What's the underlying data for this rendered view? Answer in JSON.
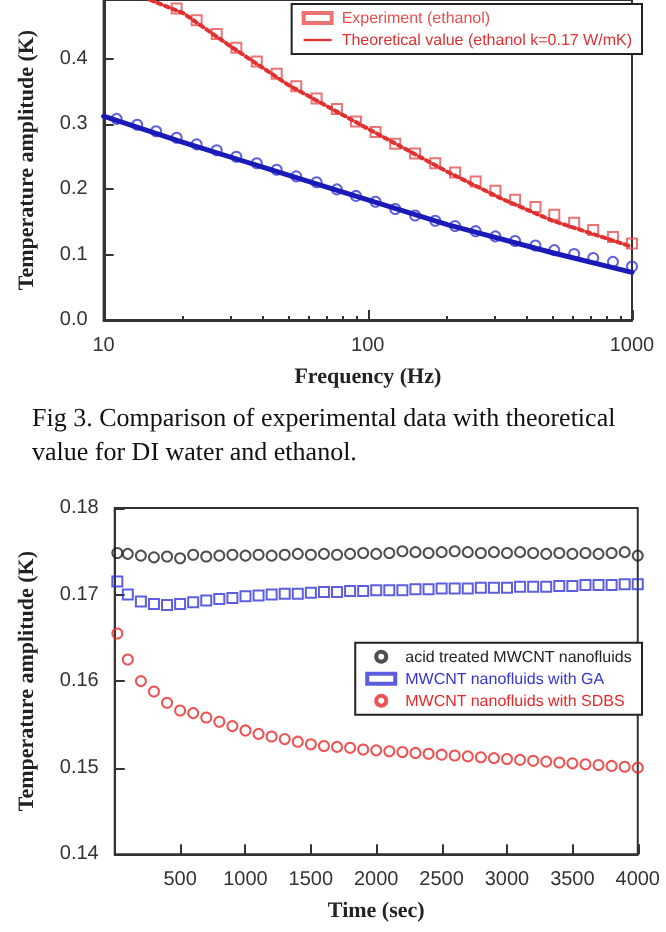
{
  "chart_data": [
    {
      "type": "line",
      "xlabel": "Frequency (Hz)",
      "ylabel": "Temperature amplitude (K)",
      "log": "x",
      "xlim": [
        10,
        1000
      ],
      "xticks": [
        10,
        100,
        1000
      ],
      "ylim": [
        0,
        0.49
      ],
      "yticks": [
        {
          "value": 0,
          "label": "0.0"
        },
        0.1,
        0.2,
        0.3,
        0.4
      ],
      "grid": false,
      "legend": "top right",
      "annotations": [
        "Fig 3. Comparison of experimental data with theoretical value for DI water and ethanol."
      ],
      "series": [
        {
          "type": "scatter",
          "marker": "circle",
          "color": "#3a3ad8",
          "x": [
            11.2,
            13.4,
            15.8,
            18.9,
            22.5,
            26.8,
            31.8,
            38,
            45.2,
            53.6,
            64,
            76.4,
            90.2,
            107,
            127,
            151,
            180,
            214,
            256,
            304,
            361,
            431,
            508,
            604,
            713,
            847,
            1000
          ],
          "values": [
            0.308,
            0.299,
            0.289,
            0.279,
            0.269,
            0.26,
            0.25,
            0.24,
            0.23,
            0.22,
            0.211,
            0.2,
            0.19,
            0.181,
            0.17,
            0.16,
            0.152,
            0.144,
            0.136,
            0.128,
            0.121,
            0.114,
            0.107,
            0.101,
            0.095,
            0.089,
            0.082
          ]
        },
        {
          "marker": "none",
          "line_style": "solid",
          "color": "#1a1ab8",
          "x": [
            10,
            20,
            50,
            100,
            200,
            500,
            1000
          ],
          "values": [
            0.312,
            0.272,
            0.222,
            0.184,
            0.146,
            0.103,
            0.073
          ]
        },
        {
          "name": "Experiment (ethanol)",
          "type": "scatter",
          "marker": "square",
          "color": "#e85050",
          "x": [
            18.9,
            22.5,
            26.8,
            31.8,
            38,
            45.2,
            53.6,
            64,
            76.4,
            90.2,
            107,
            127,
            151,
            180,
            214,
            256,
            304,
            361,
            431,
            508,
            604,
            713,
            847,
            1000
          ],
          "values": [
            0.477,
            0.459,
            0.438,
            0.417,
            0.396,
            0.377,
            0.358,
            0.339,
            0.323,
            0.304,
            0.288,
            0.27,
            0.255,
            0.24,
            0.226,
            0.212,
            0.198,
            0.184,
            0.173,
            0.161,
            0.149,
            0.138,
            0.127,
            0.117
          ]
        },
        {
          "name": "Theoretical value (ethanol k=0.17 W/mK)",
          "marker": "none",
          "line_style": "dotted",
          "color": "#e03030",
          "x": [
            15,
            20,
            30,
            50,
            100,
            200,
            316,
            500,
            1000
          ],
          "values": [
            0.49,
            0.47,
            0.42,
            0.36,
            0.293,
            0.227,
            0.187,
            0.152,
            0.112
          ]
        }
      ]
    },
    {
      "type": "scatter",
      "xlabel": "Time (sec)",
      "ylabel": "Temperature amplitude (K)",
      "xlim": [
        0,
        4000
      ],
      "xticks": [
        500,
        1000,
        1500,
        2000,
        2500,
        3000,
        3500,
        4000
      ],
      "ylim": [
        0.14,
        0.18
      ],
      "yticks": [
        0.14,
        0.15,
        0.16,
        0.17,
        0.18
      ],
      "grid": false,
      "legend": "right",
      "x": [
        20,
        100,
        200,
        300,
        400,
        500,
        600,
        700,
        800,
        900,
        1000,
        1100,
        1200,
        1300,
        1400,
        1500,
        1600,
        1700,
        1800,
        1900,
        2000,
        2100,
        2200,
        2300,
        2400,
        2500,
        2600,
        2700,
        2800,
        2900,
        3000,
        3100,
        3200,
        3300,
        3400,
        3500,
        3600,
        3700,
        3800,
        3900,
        4000
      ],
      "series": [
        {
          "name": "acid treated MWCNT nanofluids",
          "marker": "circle",
          "color": "#222222",
          "values": [
            0.1748,
            0.1747,
            0.1745,
            0.1743,
            0.1744,
            0.1742,
            0.1746,
            0.1744,
            0.1745,
            0.1746,
            0.1745,
            0.1746,
            0.1745,
            0.1746,
            0.1747,
            0.1746,
            0.1747,
            0.1746,
            0.1747,
            0.1748,
            0.1747,
            0.1748,
            0.175,
            0.1749,
            0.1748,
            0.1749,
            0.175,
            0.1749,
            0.1748,
            0.1749,
            0.1748,
            0.1749,
            0.1748,
            0.1747,
            0.1748,
            0.1747,
            0.1748,
            0.1747,
            0.1748,
            0.1749,
            0.1745
          ]
        },
        {
          "name": "MWCNT nanofluids with GA",
          "marker": "square",
          "color": "#3434d8",
          "values": [
            0.1715,
            0.17,
            0.1692,
            0.1689,
            0.1688,
            0.1689,
            0.1691,
            0.1693,
            0.1695,
            0.1696,
            0.1698,
            0.1699,
            0.17,
            0.1701,
            0.1701,
            0.1702,
            0.1703,
            0.1703,
            0.1704,
            0.1704,
            0.1705,
            0.1705,
            0.1705,
            0.1706,
            0.1706,
            0.1707,
            0.1707,
            0.1707,
            0.1708,
            0.1708,
            0.1708,
            0.1709,
            0.1709,
            0.1709,
            0.171,
            0.171,
            0.1711,
            0.1711,
            0.1711,
            0.1712,
            0.1712
          ]
        },
        {
          "name": "MWCNT nanofluids with SDBS",
          "marker": "circle",
          "color": "#e82828",
          "values": [
            0.1655,
            0.1625,
            0.16,
            0.1588,
            0.1575,
            0.1566,
            0.1563,
            0.1558,
            0.1553,
            0.1548,
            0.1543,
            0.1539,
            0.1536,
            0.1533,
            0.153,
            0.1527,
            0.1525,
            0.1524,
            0.1523,
            0.1521,
            0.152,
            0.1519,
            0.1518,
            0.1517,
            0.1516,
            0.1515,
            0.1514,
            0.1513,
            0.1512,
            0.1511,
            0.151,
            0.1509,
            0.1508,
            0.1507,
            0.1506,
            0.1505,
            0.1504,
            0.1503,
            0.1502,
            0.1501,
            0.15
          ]
        }
      ]
    }
  ]
}
